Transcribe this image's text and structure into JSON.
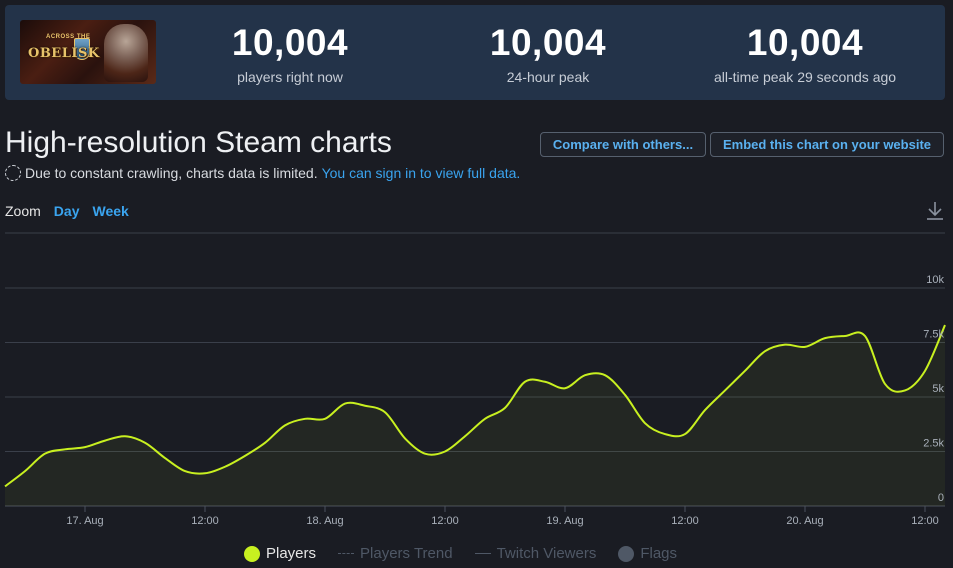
{
  "header": {
    "game_logo_top": "ACROSS THE",
    "game_logo_main": "OBELISK",
    "stats": [
      {
        "value": "10,004",
        "label": "players right now"
      },
      {
        "value": "10,004",
        "label": "24-hour peak"
      },
      {
        "value": "10,004",
        "label": "all-time peak 29 seconds ago"
      }
    ]
  },
  "title": "High-resolution Steam charts",
  "buttons": {
    "compare": "Compare with others...",
    "embed": "Embed this chart on your website"
  },
  "notice": {
    "text": "Due to constant crawling, charts data is limited.",
    "link": "You can sign in to view full data."
  },
  "zoom": {
    "label": "Zoom",
    "options": [
      "Day",
      "Week"
    ]
  },
  "legend": {
    "players": "Players",
    "trend": "Players Trend",
    "twitch": "Twitch Viewers",
    "flags": "Flags"
  },
  "colors": {
    "line": "#c8f020",
    "accent": "#3aa4ef",
    "grid": "#3a3f4a"
  },
  "chart_data": {
    "type": "area",
    "series": [
      {
        "name": "Players",
        "x": [
          "16 Aug 16:00",
          "16 Aug 18:00",
          "16 Aug 20:00",
          "16 Aug 22:00",
          "17 Aug 00:00",
          "17 Aug 02:00",
          "17 Aug 04:00",
          "17 Aug 06:00",
          "17 Aug 08:00",
          "17 Aug 10:00",
          "17 Aug 12:00",
          "17 Aug 14:00",
          "17 Aug 16:00",
          "17 Aug 18:00",
          "17 Aug 20:00",
          "17 Aug 22:00",
          "18 Aug 00:00",
          "18 Aug 02:00",
          "18 Aug 04:00",
          "18 Aug 06:00",
          "18 Aug 08:00",
          "18 Aug 10:00",
          "18 Aug 12:00",
          "18 Aug 14:00",
          "18 Aug 16:00",
          "18 Aug 18:00",
          "18 Aug 20:00",
          "18 Aug 22:00",
          "19 Aug 00:00",
          "19 Aug 02:00",
          "19 Aug 04:00",
          "19 Aug 06:00",
          "19 Aug 08:00",
          "19 Aug 10:00",
          "19 Aug 12:00",
          "19 Aug 14:00",
          "19 Aug 16:00",
          "19 Aug 18:00",
          "19 Aug 20:00",
          "19 Aug 22:00",
          "20 Aug 00:00",
          "20 Aug 02:00",
          "20 Aug 04:00",
          "20 Aug 06:00",
          "20 Aug 08:00",
          "20 Aug 10:00",
          "20 Aug 12:00",
          "20 Aug 14:00"
        ],
        "values": [
          900,
          1600,
          2400,
          2600,
          2700,
          3000,
          3200,
          2900,
          2200,
          1600,
          1500,
          1800,
          2300,
          2900,
          3700,
          4000,
          4000,
          4700,
          4600,
          4300,
          3100,
          2400,
          2500,
          3200,
          4000,
          4500,
          5700,
          5700,
          5400,
          6000,
          6000,
          5100,
          3800,
          3300,
          3300,
          4400,
          5300,
          6200,
          7100,
          7400,
          7300,
          7700,
          7800,
          7800,
          5600,
          5300,
          6200,
          8300
        ]
      }
    ],
    "x_tick_labels": [
      "17. Aug",
      "12:00",
      "18. Aug",
      "12:00",
      "19. Aug",
      "12:00",
      "20. Aug",
      "12:00"
    ],
    "y_tick_labels": [
      "0",
      "2.5k",
      "5k",
      "7.5k",
      "10k"
    ],
    "ylim": [
      0,
      10000
    ],
    "grid": true,
    "legend_position": "bottom"
  }
}
